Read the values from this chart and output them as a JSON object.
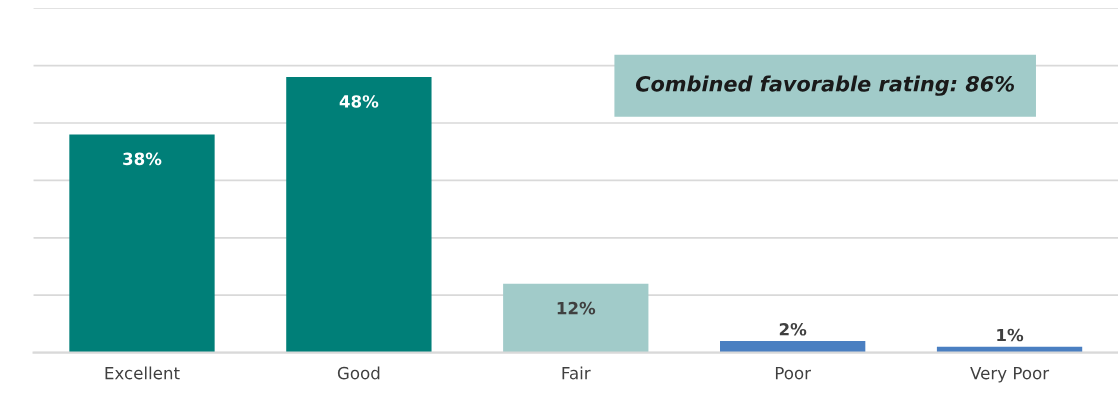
{
  "chart_data": {
    "type": "bar",
    "categories": [
      "Excellent",
      "Good",
      "Fair",
      "Poor",
      "Very Poor"
    ],
    "values": [
      38,
      48,
      12,
      2,
      1
    ],
    "colors": [
      "#007f78",
      "#007f78",
      "#a1cbc9",
      "#4a7fc1",
      "#4a7fc1"
    ],
    "value_labels": [
      "38%",
      "48%",
      "12%",
      "2%",
      "1%"
    ],
    "ylim": [
      0,
      60
    ],
    "yticks": [
      {
        "value": 0,
        "label": null
      },
      {
        "value": 10,
        "label": null
      },
      {
        "value": 20,
        "label": null
      },
      {
        "value": 30,
        "label": null
      },
      {
        "value": 40,
        "label": null
      },
      {
        "value": 50,
        "label": null
      },
      {
        "value": 60,
        "label": null
      }
    ],
    "tick_labels": "x",
    "grid": "y",
    "legend": false,
    "annotations": [
      "Combined favorable rating: 86%"
    ]
  }
}
